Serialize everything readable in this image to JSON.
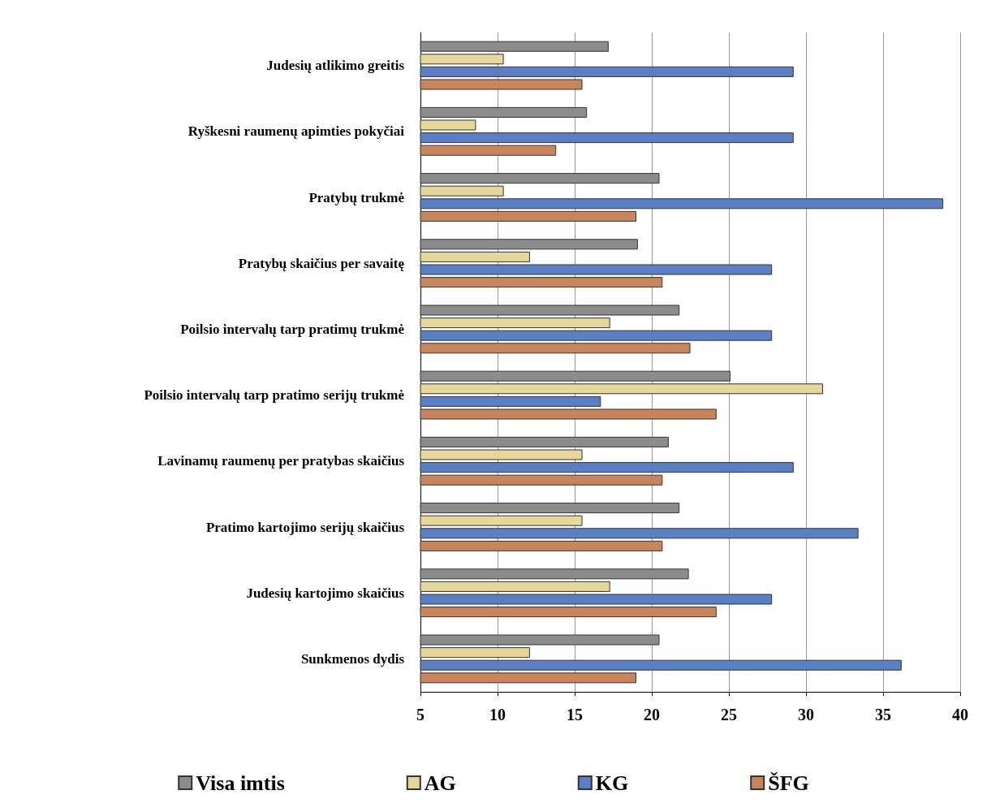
{
  "chart_data": {
    "type": "bar",
    "orientation": "horizontal",
    "categories": [
      "Judesių atlikimo greitis",
      "Ryškesni raumenų apimties pokyčiai",
      "Pratybų trukmė",
      "Pratybų skaičius per savaitę",
      "Poilsio intervalų tarp pratimų trukmė",
      "Poilsio intervalų tarp pratimo serijų trukmė",
      "Lavinamų raumenų per pratybas skaičius",
      "Pratimo kartojimo serijų skaičius",
      "Judesių kartojimo skaičius",
      "Sunkmenos dydis"
    ],
    "series": [
      {
        "name": "Visa imtis",
        "color": "#8c8c8c",
        "values": [
          17.2,
          15.8,
          20.5,
          19.1,
          21.8,
          25.1,
          21.1,
          21.8,
          22.4,
          20.5
        ]
      },
      {
        "name": "AG",
        "color": "#e6d89a",
        "values": [
          10.4,
          8.6,
          10.4,
          12.1,
          17.3,
          31.1,
          15.5,
          15.5,
          17.3,
          12.1
        ]
      },
      {
        "name": "KG",
        "color": "#5b7fc4",
        "values": [
          29.2,
          29.2,
          38.9,
          27.8,
          27.8,
          16.7,
          29.2,
          33.4,
          27.8,
          36.2
        ]
      },
      {
        "name": "ŠFG",
        "color": "#c8845a",
        "values": [
          15.5,
          13.8,
          19.0,
          20.7,
          22.5,
          24.2,
          20.7,
          20.7,
          24.2,
          19.0
        ]
      }
    ],
    "xlim": [
      5,
      40
    ],
    "xticks": [
      5,
      10,
      15,
      20,
      25,
      30,
      35,
      40
    ],
    "grid": "x",
    "legend": "bottom"
  }
}
